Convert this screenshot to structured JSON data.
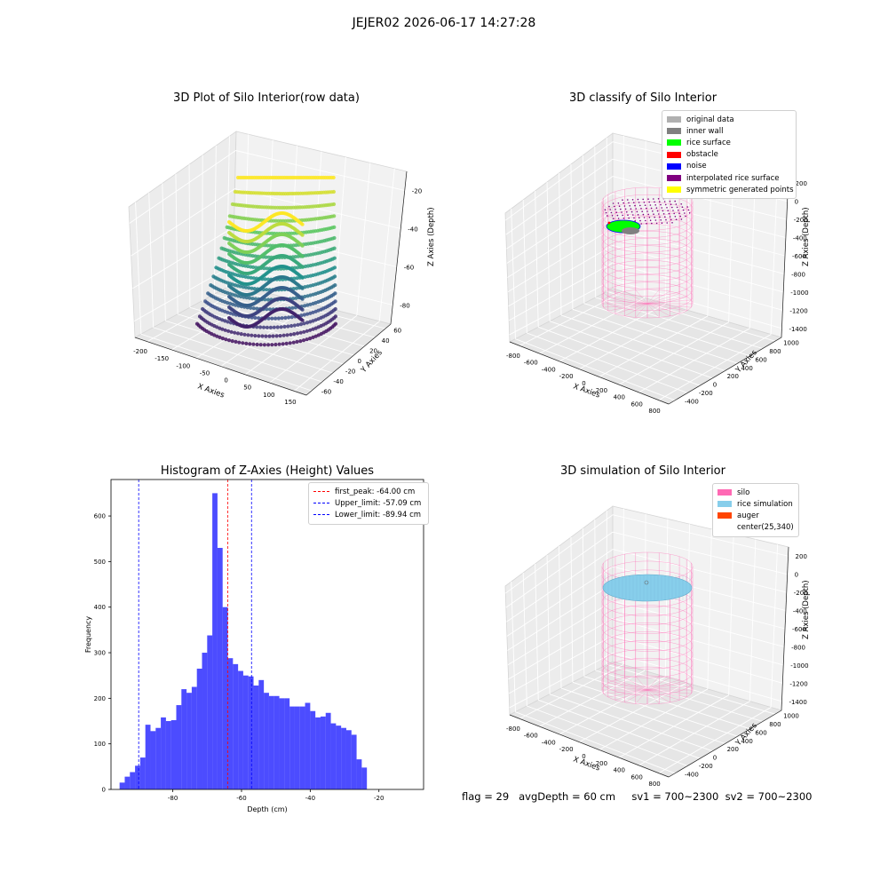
{
  "suptitle": "JEJER02 2026-06-17 14:27:28",
  "footer": "flag = 29   avgDepth = 60 cm     sv1 = 700~2300  sv2 = 700~2300",
  "panel_raw": {
    "title": "3D Plot of Silo Interior(row data)",
    "xlabel": "X Axies",
    "ylabel": "Y Axies",
    "zlabel": "Z Axies (Depth)",
    "xticks": [
      "-200",
      "-150",
      "-100",
      "-50",
      "0",
      "50",
      "100",
      "150"
    ],
    "yticks": [
      "-60",
      "-40",
      "-20",
      "0",
      "20",
      "40",
      "60"
    ],
    "zticks": [
      "-20",
      "-40",
      "-60",
      "-80"
    ],
    "colormap": [
      "#440154",
      "#3b528b",
      "#21918c",
      "#5ec962",
      "#fde725"
    ]
  },
  "panel_classify": {
    "title": "3D classify of Silo Interior",
    "xlabel": "X Axies",
    "ylabel": "Y Axies",
    "zlabel": "Z Axies (Depth)",
    "xticks": [
      "-800",
      "-600",
      "-400",
      "-200",
      "0",
      "200",
      "400",
      "600",
      "800"
    ],
    "yticks": [
      "-400",
      "-200",
      "0",
      "200",
      "400",
      "600",
      "800",
      "1000"
    ],
    "zticks": [
      "200",
      "0",
      "-200",
      "-400",
      "-600",
      "-800",
      "-1000",
      "-1200",
      "-1400"
    ],
    "legend": [
      {
        "label": "original data",
        "color": "#b0b0b0"
      },
      {
        "label": "inner wall",
        "color": "#808080"
      },
      {
        "label": "rice surface",
        "color": "#00ff00"
      },
      {
        "label": "obstacle",
        "color": "#ff0000"
      },
      {
        "label": "noise",
        "color": "#0000ff"
      },
      {
        "label": "interpolated rice surface",
        "color": "#800080"
      },
      {
        "label": "symmetric generated points",
        "color": "#ffff00"
      }
    ],
    "silo_color": "#ff69b4"
  },
  "panel_sim": {
    "title": "3D simulation of Silo Interior",
    "xlabel": "X Axies",
    "ylabel": "Y Axies",
    "zlabel": "Z Axies (Depth)",
    "xticks": [
      "-800",
      "-600",
      "-400",
      "-200",
      "0",
      "200",
      "400",
      "600",
      "800"
    ],
    "yticks": [
      "-400",
      "-200",
      "0",
      "200",
      "400",
      "600",
      "800",
      "1000"
    ],
    "zticks": [
      "200",
      "0",
      "-200",
      "-400",
      "-600",
      "-800",
      "-1000",
      "-1200",
      "-1400"
    ],
    "legend": [
      {
        "label": "silo",
        "color": "#ff69b4"
      },
      {
        "label": "rice simulation",
        "color": "#87ceeb"
      },
      {
        "label": "auger",
        "color": "#ff4500"
      },
      {
        "label": "center(25,340)",
        "color": ""
      }
    ]
  },
  "chart_data": {
    "type": "bar",
    "title": "Histogram of Z-Axies (Height) Values",
    "xlabel": "Depth (cm)",
    "ylabel": "Frequency",
    "xlim": [
      -98,
      -7
    ],
    "ylim": [
      0,
      680
    ],
    "xticks": [
      -80,
      -60,
      -40,
      -20
    ],
    "yticks": [
      0,
      100,
      200,
      300,
      400,
      500,
      600
    ],
    "bar_color": "#0000ff",
    "bins": {
      "start": -95.5,
      "width": 1.5,
      "values": [
        15,
        28,
        38,
        52,
        70,
        142,
        128,
        135,
        158,
        150,
        152,
        185,
        220,
        212,
        225,
        265,
        300,
        338,
        650,
        530,
        400,
        288,
        275,
        260,
        250,
        248,
        228,
        240,
        212,
        205,
        205,
        200,
        200,
        182,
        182,
        182,
        190,
        172,
        158,
        160,
        168,
        145,
        140,
        135,
        130,
        120,
        66,
        48
      ]
    },
    "lines": [
      {
        "label": "first_peak: -64.00 cm",
        "x": -64.0,
        "color": "#ff0000"
      },
      {
        "label": "Upper_limit: -57.09 cm",
        "x": -57.09,
        "color": "#0000ff"
      },
      {
        "label": "Lower_limit: -89.94 cm",
        "x": -89.94,
        "color": "#0000ff"
      }
    ],
    "legend_position": "upper-right"
  }
}
